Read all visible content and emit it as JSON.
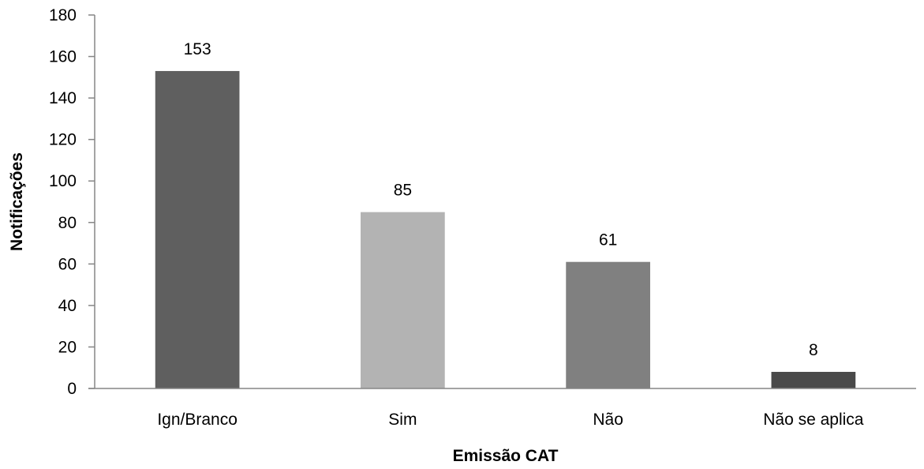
{
  "chart_data": {
    "type": "bar",
    "title": "",
    "xlabel": "Emissão CAT",
    "ylabel": "Notificações",
    "categories": [
      "Ign/Branco",
      "Sim",
      "Não",
      "Não se aplica"
    ],
    "values": [
      153,
      85,
      61,
      8
    ],
    "bar_colors": [
      "#5f5f5f",
      "#b3b3b3",
      "#808080",
      "#4a4a4a"
    ],
    "ylim": [
      0,
      180
    ],
    "yticks": [
      0,
      20,
      40,
      60,
      80,
      100,
      120,
      140,
      160,
      180
    ],
    "grid": false,
    "legend": "none",
    "data_labels": true
  }
}
